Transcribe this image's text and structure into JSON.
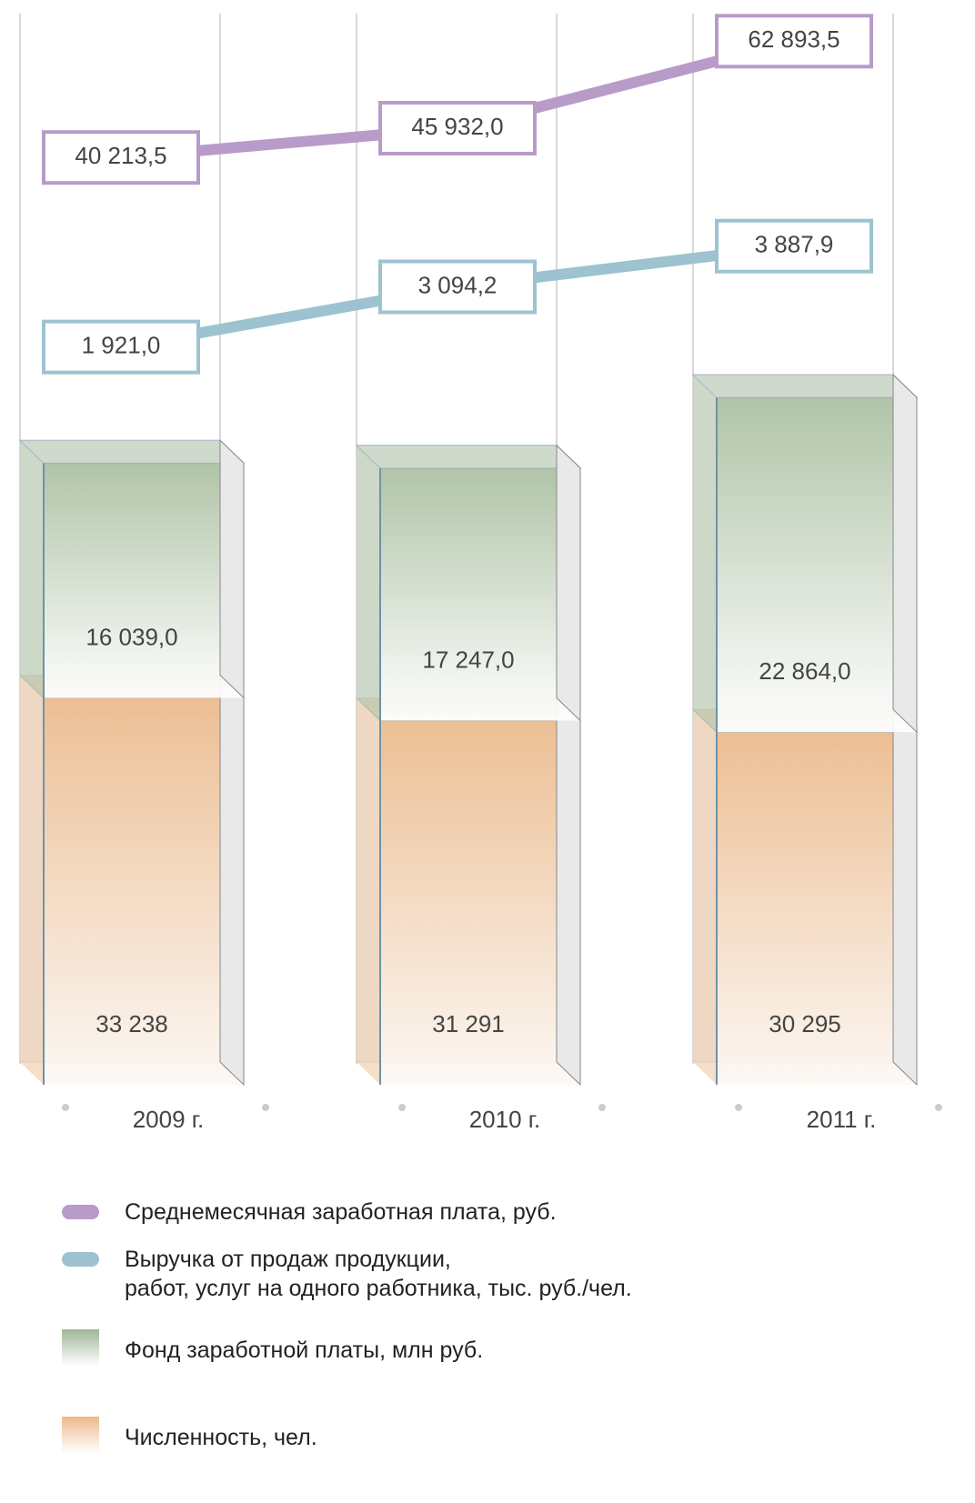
{
  "chart_data": {
    "type": "combo",
    "categories": [
      "2009 г.",
      "2010 г.",
      "2011 г."
    ],
    "series": [
      {
        "name": "Среднемесячная заработная плата, руб.",
        "type": "line",
        "color": "#b89bc9",
        "values": [
          40213.5,
          45932.0,
          62893.5
        ],
        "value_labels": [
          "40 213,5",
          "45 932,0",
          "62 893,5"
        ]
      },
      {
        "name": "Выручка от продаж продукции,\nработ, услуг на одного работника, тыс. руб./чел.",
        "type": "line",
        "color": "#9cc3cf",
        "values": [
          1921.0,
          3094.2,
          3887.9
        ],
        "value_labels": [
          "1 921,0",
          "3 094,2",
          "3 887,9"
        ]
      },
      {
        "name": "Фонд заработной платы, млн руб.",
        "type": "bar",
        "color": "#9fb796",
        "values": [
          16039.0,
          17247.0,
          22864.0
        ],
        "value_labels": [
          "16 039,0",
          "17 247,0",
          "22 864,0"
        ]
      },
      {
        "name": "Численность, чел.",
        "type": "bar",
        "color": "#ecb98a",
        "values": [
          33238,
          31291,
          30295
        ],
        "value_labels": [
          "33 238",
          "31 291",
          "30 295"
        ]
      }
    ]
  }
}
